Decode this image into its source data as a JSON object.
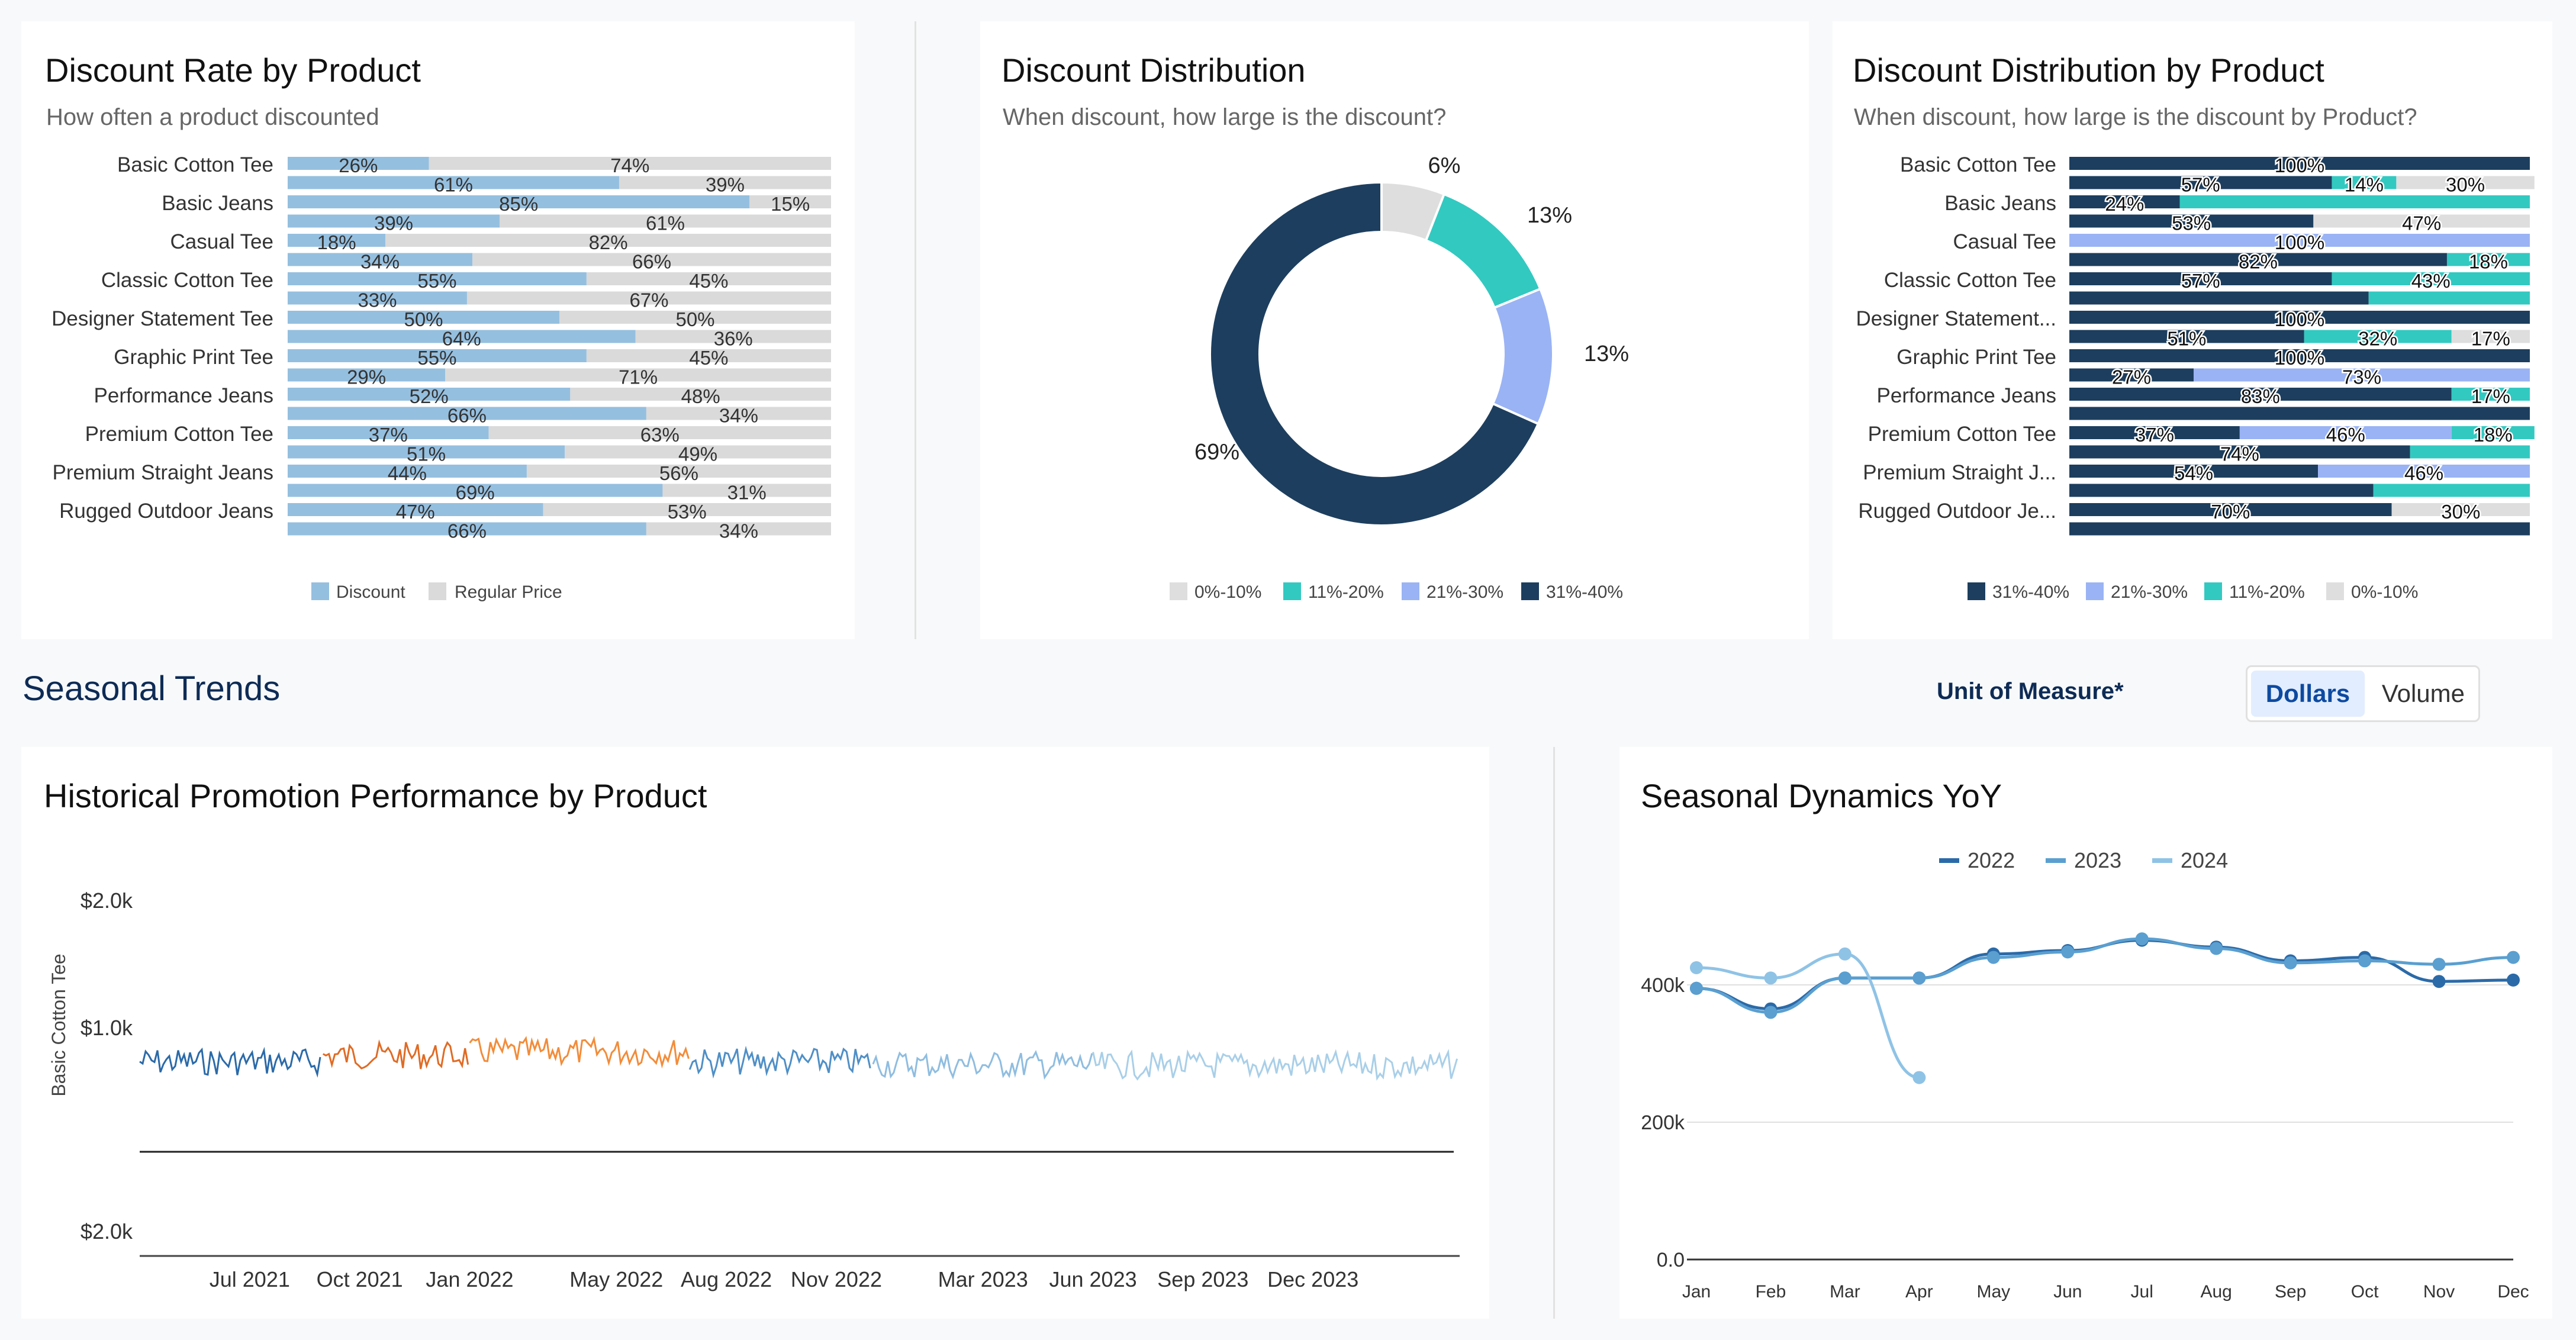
{
  "colors": {
    "discount": "#95bfdf",
    "regular": "#dadada",
    "c1": "#1d3e5e",
    "c2": "#9ab3f4",
    "c3": "#32c9c1",
    "c4": "#dedede",
    "navy": "#0d2b55"
  },
  "card1": {
    "title": "Discount Rate by Product",
    "subtitle": "How often a product discounted"
  },
  "card2": {
    "title": "Discount Distribution",
    "subtitle": "When discount, how large is the discount?"
  },
  "card3": {
    "title": "Discount Distribution by Product",
    "subtitle": "When discount, how large is the discount by Product?"
  },
  "seasonal": {
    "heading": "Seasonal Trends",
    "uom_label": "Unit of Measure*",
    "options": [
      "Dollars",
      "Volume"
    ],
    "selected": "Dollars"
  },
  "card4": {
    "title": "Historical Promotion Performance by Product"
  },
  "card5": {
    "title": "Seasonal Dynamics YoY"
  },
  "chart_data": [
    {
      "type": "bar",
      "title": "Discount Rate by Product",
      "subtitle": "How often a product discounted",
      "categories": [
        "Basic Cotton Tee",
        "Basic Jeans",
        "Casual Tee",
        "Classic Cotton Tee",
        "Designer Statement Tee",
        "Graphic Print Tee",
        "Performance Jeans",
        "Premium Cotton Tee",
        "Premium Straight Jeans",
        "Rugged Outdoor Jeans"
      ],
      "bars": [
        [
          26,
          74
        ],
        [
          61,
          39
        ],
        [
          85,
          15
        ],
        [
          39,
          61
        ],
        [
          18,
          82
        ],
        [
          34,
          66
        ],
        [
          55,
          45
        ],
        [
          33,
          67
        ],
        [
          50,
          50
        ],
        [
          64,
          36
        ],
        [
          55,
          45
        ],
        [
          29,
          71
        ],
        [
          52,
          48
        ],
        [
          66,
          34
        ],
        [
          37,
          63
        ],
        [
          51,
          49
        ],
        [
          44,
          56
        ],
        [
          69,
          31
        ],
        [
          47,
          53
        ],
        [
          66,
          34
        ]
      ],
      "legend": [
        "Discount",
        "Regular Price"
      ],
      "legend_position": "bottom"
    },
    {
      "type": "pie",
      "title": "Discount Distribution",
      "subtitle": "When discount, how large is the discount?",
      "slices": [
        {
          "label": "0%-10%",
          "value": 6,
          "text": "6%"
        },
        {
          "label": "11%-20%",
          "value": 13,
          "text": "13%"
        },
        {
          "label": "21%-30%",
          "value": 13,
          "text": "13%"
        },
        {
          "label": "31%-40%",
          "value": 69,
          "text": "69%"
        }
      ],
      "legend_position": "bottom"
    },
    {
      "type": "bar",
      "title": "Discount Distribution by Product",
      "subtitle": "When discount, how large is the discount by Product?",
      "categories": [
        "Basic Cotton Tee",
        "Basic Jeans",
        "Casual Tee",
        "Classic Cotton Tee",
        "Designer Statement...",
        "Graphic Print Tee",
        "Performance Jeans",
        "Premium Cotton Tee",
        "Premium Straight J...",
        "Rugged Outdoor Je..."
      ],
      "series_names": [
        "31%-40%",
        "21%-30%",
        "11%-20%",
        "0%-10%"
      ],
      "bars": [
        [
          100,
          0,
          0,
          0
        ],
        [
          57,
          0,
          14,
          30
        ],
        [
          24,
          0,
          76,
          0
        ],
        [
          53,
          0,
          0,
          47
        ],
        [
          0,
          100,
          0,
          0
        ],
        [
          82,
          0,
          18,
          0
        ],
        [
          57,
          0,
          43,
          0
        ],
        [
          65,
          0,
          35,
          0
        ],
        [
          100,
          0,
          0,
          0
        ],
        [
          51,
          0,
          32,
          17
        ],
        [
          100,
          0,
          0,
          0
        ],
        [
          27,
          73,
          0,
          0
        ],
        [
          83,
          0,
          17,
          0
        ],
        [
          100,
          0,
          0,
          0
        ],
        [
          37,
          46,
          18,
          0
        ],
        [
          74,
          0,
          26,
          0
        ],
        [
          54,
          46,
          0,
          0
        ],
        [
          66,
          0,
          34,
          0
        ],
        [
          70,
          0,
          0,
          30
        ],
        [
          100,
          0,
          0,
          0
        ]
      ],
      "labels": [
        [
          "100%"
        ],
        [
          "57%",
          "14%",
          "30%"
        ],
        [
          "24%"
        ],
        [
          "53%",
          "47%"
        ],
        [
          "100%"
        ],
        [
          "82%",
          "18%"
        ],
        [
          "57%",
          "43%"
        ],
        [],
        [
          "100%"
        ],
        [
          "51%",
          "32%",
          "17%"
        ],
        [
          "100%"
        ],
        [
          "27%",
          "73%"
        ],
        [
          "83%",
          "17%"
        ],
        [],
        [
          "37%",
          "46%",
          "18%"
        ],
        [
          "74%"
        ],
        [
          "54%",
          "46%"
        ],
        [],
        [
          "70%",
          "30%"
        ],
        []
      ],
      "legend_position": "bottom"
    },
    {
      "type": "line",
      "title": "Historical Promotion Performance by Product",
      "ylabel": "Basic Cotton Tee",
      "y_ticks": [
        "$2.0k",
        "$1.0k",
        "$2.0k"
      ],
      "x_ticks": [
        "Jul 2021",
        "Oct 2021",
        "Jan 2022",
        "May 2022",
        "Aug 2022",
        "Nov 2022",
        "Mar 2023",
        "Jun 2023",
        "Sep 2023",
        "Dec 2023"
      ],
      "x_range": [
        "2021-04",
        "2024-04"
      ],
      "segments": [
        {
          "from": "2021-04",
          "to": "2021-09",
          "color": "#2b6aa8",
          "level": 720
        },
        {
          "from": "2021-09",
          "to": "2022-01",
          "color": "#e06b24",
          "level": 770
        },
        {
          "from": "2022-01",
          "to": "2022-07",
          "color": "#f28c3a",
          "level": 800
        },
        {
          "from": "2022-07",
          "to": "2022-12",
          "color": "#4f8fc6",
          "level": 720
        },
        {
          "from": "2022-12",
          "to": "2023-06",
          "color": "#8fbde0",
          "level": 700
        },
        {
          "from": "2023-06",
          "to": "2024-04",
          "color": "#a9cfe8",
          "level": 690
        }
      ]
    },
    {
      "type": "line",
      "title": "Seasonal Dynamics YoY",
      "categories": [
        "Jan",
        "Feb",
        "Mar",
        "Apr",
        "May",
        "Jun",
        "Jul",
        "Aug",
        "Sep",
        "Oct",
        "Nov",
        "Dec"
      ],
      "y_ticks": [
        "0.0",
        "200k",
        "400k"
      ],
      "ylim": [
        0,
        500000
      ],
      "series": [
        {
          "name": "2022",
          "values": [
            395000,
            365000,
            410000,
            410000,
            445000,
            450000,
            465000,
            455000,
            435000,
            440000,
            405000,
            407000
          ]
        },
        {
          "name": "2023",
          "values": [
            395000,
            360000,
            410000,
            410000,
            440000,
            448000,
            467000,
            453000,
            432000,
            435000,
            430000,
            440000
          ]
        },
        {
          "name": "2024",
          "values": [
            425000,
            410000,
            445000,
            265000,
            null,
            null,
            null,
            null,
            null,
            null,
            null,
            null
          ]
        }
      ],
      "series_colors": [
        "#2b6aa8",
        "#5a9fd0",
        "#8fc3e6"
      ],
      "legend_position": "top"
    }
  ]
}
